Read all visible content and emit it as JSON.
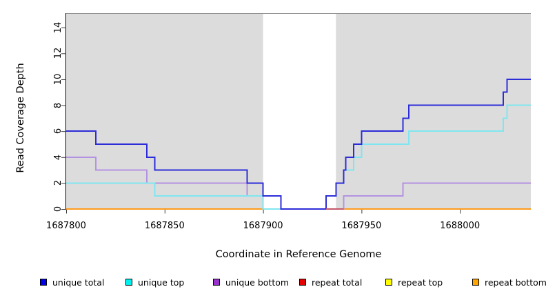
{
  "chart_data": {
    "type": "line",
    "subtype": "step-coverage",
    "title": "",
    "xlabel": "Coordinate in Reference Genome",
    "ylabel": "Read Coverage Depth",
    "x_range": [
      1687800,
      1688036
    ],
    "y_range": [
      0,
      15.1
    ],
    "x_ticks": [
      1687800,
      1687850,
      1687900,
      1687950,
      1688000
    ],
    "y_ticks": [
      0,
      2,
      4,
      6,
      8,
      10,
      12,
      14
    ],
    "grid": false,
    "plot_bg_color": "#dcdcdc",
    "no_data_region": {
      "from": 1687900,
      "to": 1687937,
      "color": "#ffffff"
    },
    "top_border_color": "#8e8e8e",
    "axis_color": "#000000",
    "tick_color": "#3a3a3a",
    "series": [
      {
        "name": "repeat total",
        "line_color": "#d43c3c",
        "points": [
          [
            1687800,
            0
          ]
        ]
      },
      {
        "name": "repeat top",
        "line_color": "#f5e626",
        "points": [
          [
            1687800,
            0
          ]
        ]
      },
      {
        "name": "repeat bottom",
        "line_color": "#ff9a1a",
        "points": [
          [
            1687800,
            0
          ]
        ]
      },
      {
        "name": "unique bottom",
        "line_color": "#b392e2",
        "points": [
          [
            1687800,
            4
          ],
          [
            1687815,
            3
          ],
          [
            1687841,
            2
          ],
          [
            1687892,
            1
          ],
          [
            1687900,
            0
          ],
          [
            1687941,
            1
          ],
          [
            1687971,
            2
          ]
        ]
      },
      {
        "name": "unique top",
        "line_color": "#7fe6f0",
        "points": [
          [
            1687800,
            2
          ],
          [
            1687845,
            1
          ],
          [
            1687900,
            0
          ],
          [
            1687932,
            1
          ],
          [
            1687937,
            2
          ],
          [
            1687941,
            3
          ],
          [
            1687946,
            4
          ],
          [
            1687950,
            5
          ],
          [
            1687974,
            6
          ],
          [
            1688022,
            7
          ],
          [
            1688024,
            8
          ]
        ]
      },
      {
        "name": "unique total",
        "line_color": "#2c2cd8",
        "points": [
          [
            1687800,
            6
          ],
          [
            1687815,
            5
          ],
          [
            1687841,
            4
          ],
          [
            1687845,
            3
          ],
          [
            1687892,
            2
          ],
          [
            1687900,
            1
          ],
          [
            1687909,
            0
          ],
          [
            1687932,
            1
          ],
          [
            1687937,
            2
          ],
          [
            1687941,
            3
          ],
          [
            1687942,
            4
          ],
          [
            1687946,
            5
          ],
          [
            1687950,
            6
          ],
          [
            1687971,
            7
          ],
          [
            1687974,
            8
          ],
          [
            1688022,
            9
          ],
          [
            1688024,
            10
          ]
        ]
      }
    ],
    "baseline_overlays": [
      {
        "color": "#c4566a",
        "value": 0,
        "from": 1687932,
        "to": 1687941
      }
    ],
    "legend": [
      {
        "label": "unique total",
        "swatch_color": "#0000e6"
      },
      {
        "label": "unique top",
        "swatch_color": "#00f0f0"
      },
      {
        "label": "unique bottom",
        "swatch_color": "#9932cc"
      },
      {
        "label": "repeat total",
        "swatch_color": "#e60000"
      },
      {
        "label": "repeat top",
        "swatch_color": "#ffff00"
      },
      {
        "label": "repeat bottom",
        "swatch_color": "#ffa500"
      }
    ]
  }
}
